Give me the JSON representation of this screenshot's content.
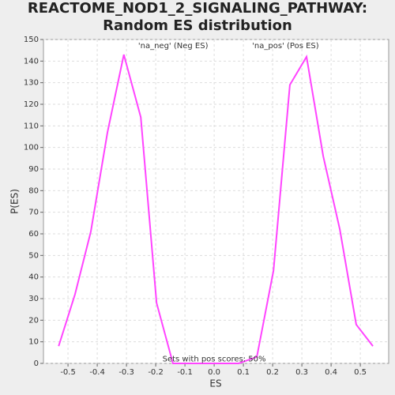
{
  "chart_data": {
    "type": "line",
    "title": "REACTOME_NOD1_2_SIGNALING_PATHWAY: Random ES distribution",
    "x_label": "ES",
    "y_label": "P(ES)",
    "annotations": [
      {
        "text": "'na_neg' (Neg ES)",
        "color": "#3333cc",
        "x": -0.26,
        "y": 147
      },
      {
        "text": "'na_pos' (Pos ES)",
        "color": "#dd3333",
        "x": 0.13,
        "y": 147
      },
      {
        "text": "Sets with pos scores: 50%",
        "color": "#333333",
        "x": 0.0,
        "y": 2
      }
    ],
    "x": [
      -0.532,
      -0.476,
      -0.422,
      -0.365,
      -0.309,
      -0.251,
      -0.197,
      -0.141,
      -0.084,
      -0.028,
      0.028,
      0.084,
      0.146,
      0.203,
      0.259,
      0.316,
      0.373,
      0.43,
      0.486,
      0.543
    ],
    "series": [
      {
        "name": "P(ES)",
        "color": "#ff44ff",
        "values": [
          8,
          32,
          61,
          107,
          143,
          114,
          28,
          0,
          0,
          0,
          0,
          0,
          3,
          43,
          129,
          142,
          96,
          62,
          18,
          8
        ]
      }
    ],
    "xlim": [
      -0.584,
      0.597
    ],
    "xticks": [
      -0.5,
      -0.4,
      -0.3,
      -0.2,
      -0.1,
      {
        "value": 0,
        "label": "0.0"
      },
      0.1,
      0.2,
      0.3,
      0.4,
      0.5
    ],
    "ylim": [
      0,
      150
    ],
    "yticks": [
      0,
      10,
      20,
      30,
      40,
      50,
      60,
      70,
      80,
      90,
      100,
      110,
      120,
      130,
      140,
      150
    ],
    "grid": true
  }
}
